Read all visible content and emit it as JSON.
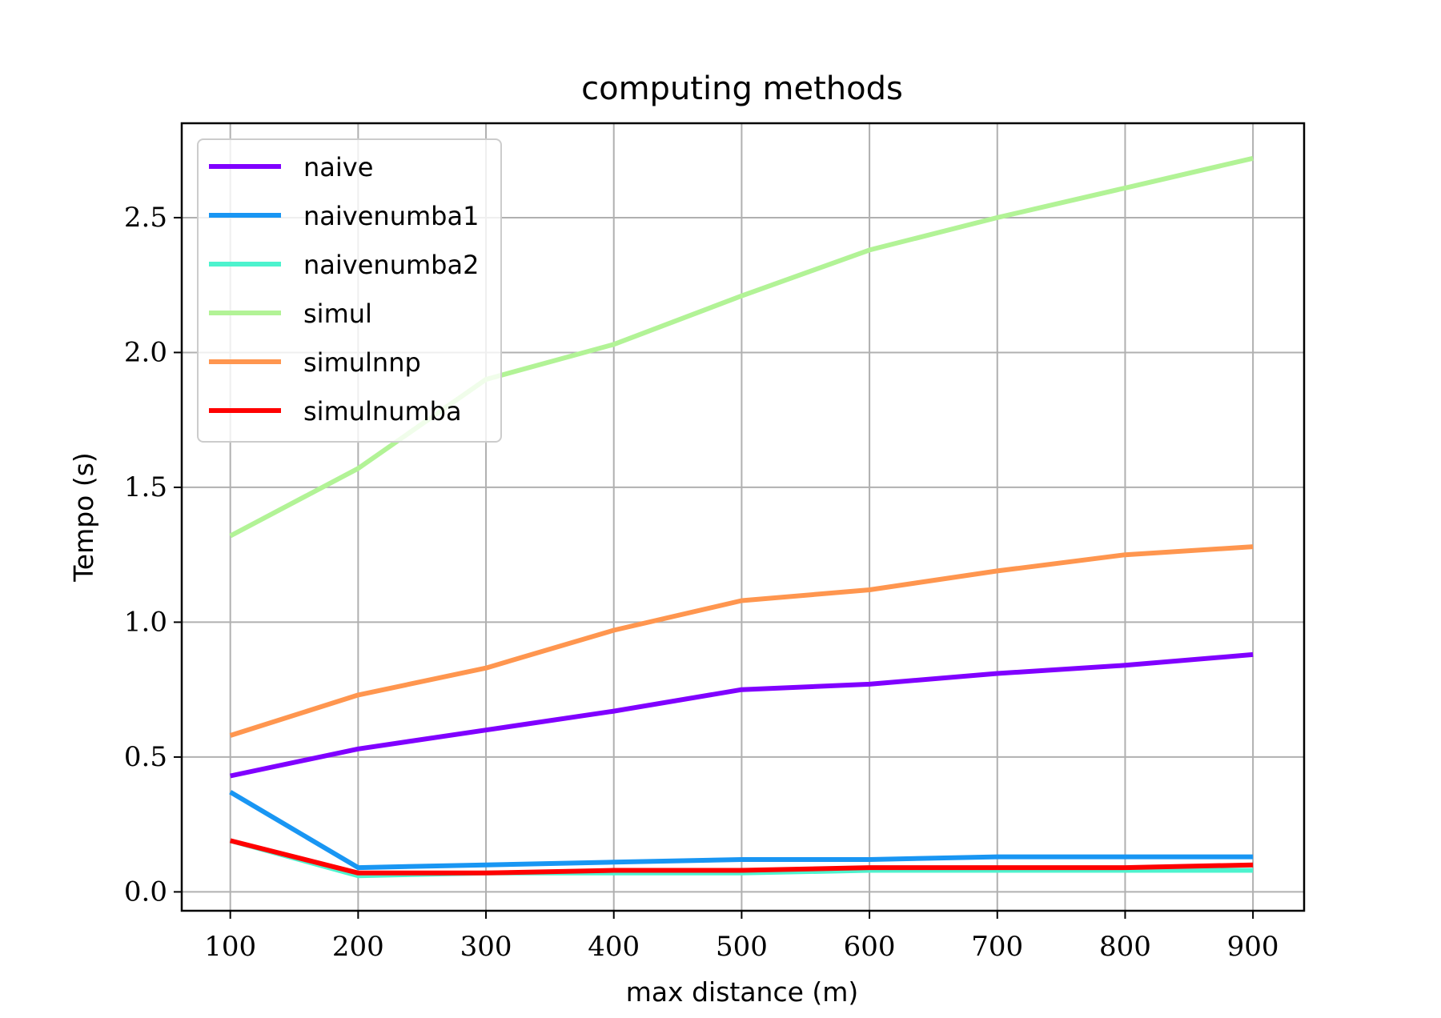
{
  "chart_data": {
    "type": "line",
    "title": "computing methods",
    "xlabel": "max distance (m)",
    "ylabel": "Tempo (s)",
    "x": [
      100,
      200,
      300,
      400,
      500,
      600,
      700,
      800,
      900
    ],
    "xlim": [
      62,
      940
    ],
    "ylim": [
      -0.07,
      2.85
    ],
    "xticks": [
      100,
      200,
      300,
      400,
      500,
      600,
      700,
      800,
      900
    ],
    "xtick_labels": [
      "100",
      "200",
      "300",
      "400",
      "500",
      "600",
      "700",
      "800",
      "900"
    ],
    "yticks": [
      0.0,
      0.5,
      1.0,
      1.5,
      2.0,
      2.5
    ],
    "ytick_labels": [
      "0.0",
      "0.5",
      "1.0",
      "1.5",
      "2.0",
      "2.5"
    ],
    "grid": true,
    "legend_position": "upper-left",
    "series": [
      {
        "name": "naive",
        "color": "#8000ff",
        "values": [
          0.43,
          0.53,
          0.6,
          0.67,
          0.75,
          0.77,
          0.81,
          0.84,
          0.88
        ]
      },
      {
        "name": "naivenumba1",
        "color": "#1996f3",
        "values": [
          0.37,
          0.09,
          0.1,
          0.11,
          0.12,
          0.12,
          0.13,
          0.13,
          0.13
        ]
      },
      {
        "name": "naivenumba2",
        "color": "#4df3ce",
        "values": [
          0.19,
          0.06,
          0.07,
          0.07,
          0.07,
          0.08,
          0.08,
          0.08,
          0.08
        ]
      },
      {
        "name": "simul",
        "color": "#b2f396",
        "values": [
          1.32,
          1.57,
          1.9,
          2.03,
          2.21,
          2.38,
          2.5,
          2.61,
          2.72
        ]
      },
      {
        "name": "simulnnp",
        "color": "#ff964f",
        "values": [
          0.58,
          0.73,
          0.83,
          0.97,
          1.08,
          1.12,
          1.19,
          1.25,
          1.28
        ]
      },
      {
        "name": "simulnumba",
        "color": "#ff0000",
        "values": [
          0.19,
          0.07,
          0.07,
          0.08,
          0.08,
          0.09,
          0.09,
          0.09,
          0.1
        ]
      }
    ]
  }
}
